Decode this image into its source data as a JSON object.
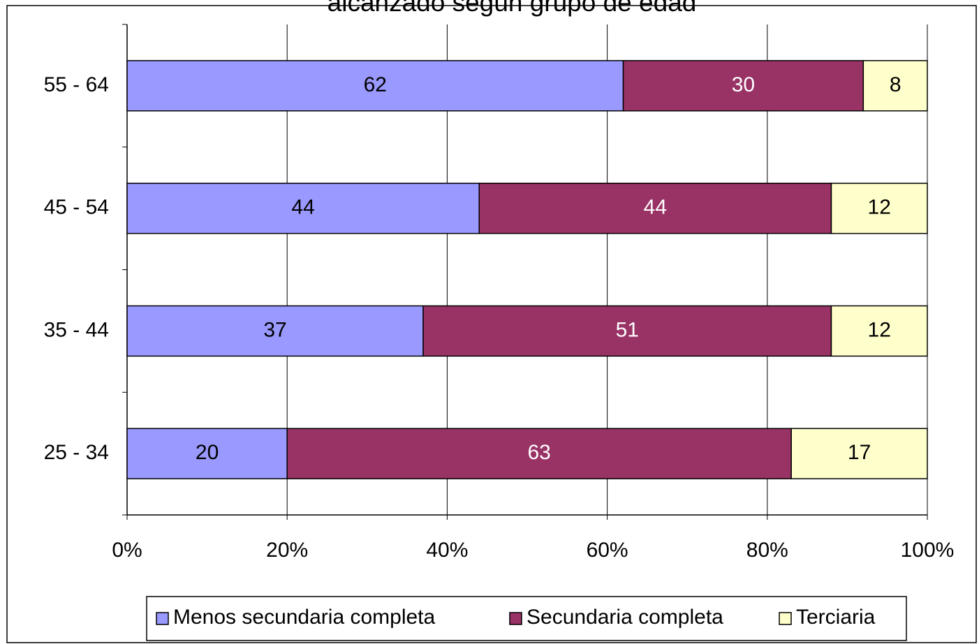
{
  "chart_data": {
    "type": "stacked_barh",
    "title": "alcanzado según grupo de edad",
    "categories": [
      "25 - 34",
      "35 - 44",
      "45 - 54",
      "55 - 64"
    ],
    "series": [
      {
        "name": "Menos secundaria completa",
        "color": "#9999ff",
        "label_color": "#000000",
        "values": [
          20,
          37,
          44,
          62
        ]
      },
      {
        "name": "Secundaria completa",
        "color": "#993366",
        "label_color": "#ffffff",
        "values": [
          63,
          51,
          44,
          30
        ]
      },
      {
        "name": "Terciaria",
        "color": "#ffffcc",
        "label_color": "#000000",
        "values": [
          17,
          12,
          12,
          8
        ]
      }
    ],
    "xlim": [
      0,
      100
    ],
    "xticks": [
      {
        "value": 0,
        "label": "0%"
      },
      {
        "value": 20,
        "label": "20%"
      },
      {
        "value": 40,
        "label": "40%"
      },
      {
        "value": 60,
        "label": "60%"
      },
      {
        "value": 80,
        "label": "80%"
      },
      {
        "value": 100,
        "label": "100%"
      }
    ],
    "grid": true,
    "legend": "bottom"
  }
}
